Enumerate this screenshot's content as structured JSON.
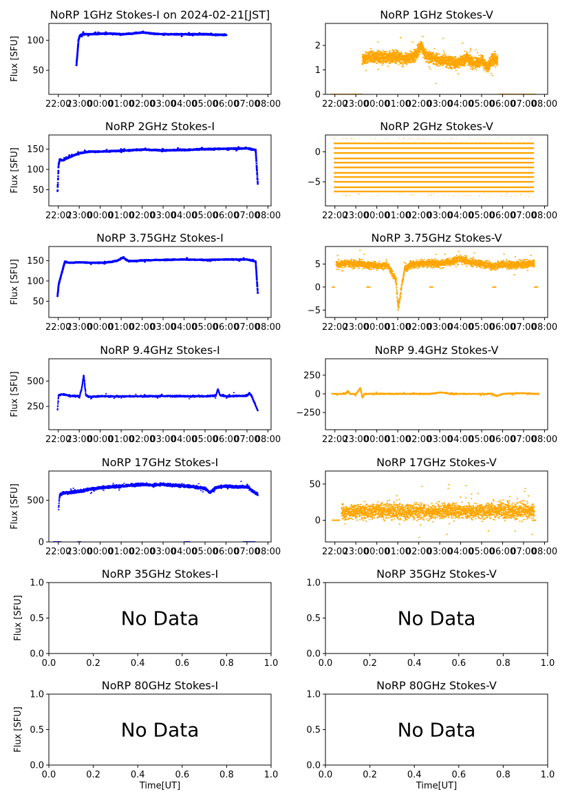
{
  "figure": {
    "colors": {
      "stokes_i": "#0000ff",
      "stokes_v": "#ffa500",
      "frame": "#000000"
    },
    "time_ticks": [
      "22:00",
      "23:00",
      "00:00",
      "01:00",
      "02:00",
      "03:00",
      "04:00",
      "05:00",
      "06:00",
      "07:00",
      "08:00"
    ],
    "frac_ticks": [
      "0.0",
      "0.2",
      "0.4",
      "0.6",
      "0.8",
      "1.0"
    ],
    "xlabel": "Time[UT]",
    "ylabel": "Flux [SFU]",
    "no_data_text": "No Data"
  },
  "chart_data": [
    {
      "panel": "1G-I",
      "title": "NoRP 1GHz Stokes-I on 2024-02-21[JST]",
      "type": "scatter",
      "color": "#0000ff",
      "ylabel": "Flux [SFU]",
      "xlabel": "",
      "xaxis": "time",
      "ylim": [
        10,
        128
      ],
      "yticks": [
        50,
        100
      ],
      "series": [
        {
          "x": [
            22.85,
            22.9,
            22.95,
            23.0,
            23.05,
            23.2,
            23.5,
            24.0,
            24.5,
            25.0,
            25.5,
            26.0,
            26.5,
            27.0,
            27.5,
            28.0,
            28.5,
            29.0,
            29.5,
            30.0
          ],
          "y": [
            58,
            78,
            100,
            106,
            109,
            110,
            110,
            111,
            111,
            110,
            111,
            113,
            111,
            110,
            110,
            110,
            110,
            110,
            109,
            109
          ]
        }
      ],
      "noise": 1.5
    },
    {
      "panel": "1G-V",
      "title": "NoRP 1GHz Stokes-V",
      "type": "scatter",
      "color": "#ffa500",
      "ylabel": "",
      "xlabel": "",
      "xaxis": "time",
      "ylim": [
        0,
        2.9
      ],
      "yticks": [
        0,
        1,
        2
      ],
      "series": [
        {
          "x": [
            23.3,
            23.7,
            24.3,
            24.8,
            25.3,
            25.7,
            25.95,
            26.1,
            26.3,
            26.8,
            27.3,
            27.7,
            28.3,
            28.7,
            29.0,
            29.3,
            29.5,
            29.75
          ],
          "y": [
            1.4,
            1.55,
            1.5,
            1.55,
            1.45,
            1.55,
            1.75,
            2.05,
            1.6,
            1.45,
            1.35,
            1.25,
            1.45,
            1.25,
            1.35,
            1.1,
            1.45,
            1.35
          ]
        }
      ],
      "noise": 0.35,
      "flat": [
        {
          "x0": 21.8,
          "x1": 23.3,
          "y": 0
        },
        {
          "x0": 29.8,
          "x1": 31.6,
          "y": 0
        }
      ]
    },
    {
      "panel": "2G-I",
      "title": "NoRP 2GHz Stokes-I",
      "type": "scatter",
      "color": "#0000ff",
      "ylabel": "Flux [SFU]",
      "xlabel": "",
      "xaxis": "time",
      "ylim": [
        10,
        185
      ],
      "yticks": [
        50,
        100,
        150
      ],
      "series": [
        {
          "x": [
            21.95,
            22.0,
            22.05,
            22.2,
            22.5,
            23.0,
            23.5,
            24.0,
            25.0,
            26.0,
            27.0,
            28.0,
            29.0,
            30.0,
            31.0,
            31.4,
            31.5
          ],
          "y": [
            45,
            110,
            125,
            122,
            130,
            140,
            144,
            144,
            146,
            149,
            147,
            148,
            150,
            151,
            152,
            148,
            65
          ]
        }
      ],
      "noise": 2.5
    },
    {
      "panel": "2G-V",
      "title": "NoRP 2GHz Stokes-V",
      "type": "bands",
      "color": "#ffa500",
      "ylabel": "",
      "xlabel": "",
      "xaxis": "time",
      "ylim": [
        -9,
        2.8
      ],
      "yticks": [
        -5,
        0
      ],
      "x_range": [
        21.95,
        31.5
      ],
      "levels": [
        1.4,
        0.6,
        -0.2,
        -1.1,
        -1.8,
        -2.6,
        -3.5,
        -4.2,
        -5.0,
        -5.9,
        -6.6
      ]
    },
    {
      "panel": "3.75G-I",
      "title": "NoRP 3.75GHz Stokes-I",
      "type": "scatter",
      "color": "#0000ff",
      "ylabel": "Flux [SFU]",
      "xlabel": "",
      "xaxis": "time",
      "ylim": [
        10,
        185
      ],
      "yticks": [
        50,
        100,
        150
      ],
      "series": [
        {
          "x": [
            21.95,
            22.0,
            22.1,
            22.3,
            22.5,
            23.0,
            23.5,
            24.0,
            24.5,
            24.8,
            25.0,
            25.1,
            25.3,
            25.6,
            26.0,
            27.0,
            28.0,
            29.0,
            30.0,
            31.0,
            31.4,
            31.5
          ],
          "y": [
            62,
            90,
            110,
            148,
            145,
            146,
            145,
            145,
            147,
            150,
            156,
            157,
            150,
            149,
            151,
            152,
            153,
            152,
            153,
            153,
            148,
            70
          ]
        }
      ],
      "noise": 2.0
    },
    {
      "panel": "3.75G-V",
      "title": "NoRP 3.75GHz Stokes-V",
      "type": "scatter",
      "color": "#ffa500",
      "ylabel": "",
      "xlabel": "",
      "xaxis": "time",
      "ylim": [
        -6.6,
        8.8
      ],
      "yticks": [
        -5,
        0,
        5
      ],
      "series": [
        {
          "x": [
            22.05,
            22.5,
            23.0,
            23.5,
            24.0,
            24.5,
            24.9,
            25.0,
            25.1,
            25.3,
            25.6,
            26.0,
            26.5,
            27.0,
            27.5,
            28.0,
            28.5,
            29.0,
            29.5,
            30.0,
            30.5,
            31.0,
            31.5
          ],
          "y": [
            5.0,
            5.2,
            5.0,
            4.8,
            4.6,
            4.8,
            1.5,
            -4.5,
            -2.0,
            3.8,
            4.8,
            5.0,
            5.2,
            5.0,
            5.5,
            6.0,
            5.4,
            5.0,
            4.5,
            5.0,
            4.8,
            5.0,
            5.2
          ]
        }
      ],
      "noise": 1.2,
      "flat": [
        {
          "x0": 21.85,
          "x1": 22.0,
          "y": 0
        },
        {
          "x0": 23.5,
          "x1": 23.7,
          "y": 0
        },
        {
          "x0": 26.5,
          "x1": 26.7,
          "y": 0
        },
        {
          "x0": 29.5,
          "x1": 29.7,
          "y": 0
        },
        {
          "x0": 31.5,
          "x1": 31.7,
          "y": 0
        }
      ]
    },
    {
      "panel": "9.4G-I",
      "title": "NoRP 9.4GHz Stokes-I",
      "type": "scatter",
      "color": "#0000ff",
      "ylabel": "Flux [SFU]",
      "xlabel": "",
      "xaxis": "time",
      "ylim": [
        20,
        720
      ],
      "yticks": [
        250,
        500
      ],
      "series": [
        {
          "x": [
            21.95,
            22.0,
            22.2,
            22.5,
            23.0,
            23.1,
            23.2,
            23.3,
            23.5,
            24.0,
            25.0,
            26.0,
            27.0,
            28.0,
            29.0,
            29.5,
            29.6,
            29.7,
            30.0,
            31.0,
            31.1,
            31.2,
            31.5
          ],
          "y": [
            210,
            360,
            370,
            355,
            350,
            420,
            560,
            360,
            345,
            350,
            348,
            350,
            352,
            350,
            350,
            355,
            420,
            360,
            350,
            355,
            380,
            355,
            210
          ]
        }
      ],
      "noise": 12
    },
    {
      "panel": "9.4G-V",
      "title": "NoRP 9.4GHz Stokes-V",
      "type": "scatter",
      "color": "#ffa500",
      "ylabel": "",
      "xlabel": "",
      "xaxis": "time",
      "ylim": [
        -480,
        470
      ],
      "yticks": [
        -250,
        0,
        250
      ],
      "series": [
        {
          "x": [
            21.85,
            22.5,
            22.6,
            22.7,
            23.0,
            23.2,
            23.3,
            23.4,
            23.6,
            24.5,
            25.5,
            26.5,
            27.0,
            27.5,
            28.5,
            29.5,
            29.7,
            30.0,
            31.0,
            31.5,
            31.7
          ],
          "y": [
            0,
            0,
            40,
            0,
            0,
            80,
            -50,
            0,
            0,
            0,
            0,
            0,
            20,
            0,
            0,
            0,
            -30,
            0,
            10,
            0,
            0
          ]
        }
      ],
      "noise": 10
    },
    {
      "panel": "17G-I",
      "title": "NoRP 17GHz Stokes-I",
      "type": "scatter",
      "color": "#0000ff",
      "ylabel": "Flux [SFU]",
      "xlabel": "",
      "xaxis": "time",
      "ylim": [
        0,
        850
      ],
      "yticks": [
        0,
        500
      ],
      "series": [
        {
          "x": [
            22.0,
            22.05,
            22.2,
            22.5,
            23.0,
            23.5,
            24.0,
            24.5,
            25.0,
            25.5,
            26.0,
            26.5,
            27.0,
            27.5,
            28.0,
            28.5,
            29.0,
            29.2,
            29.5,
            30.0,
            30.5,
            31.0,
            31.3,
            31.5
          ],
          "y": [
            400,
            560,
            590,
            590,
            610,
            630,
            650,
            660,
            670,
            680,
            690,
            680,
            690,
            680,
            670,
            660,
            640,
            590,
            650,
            670,
            660,
            660,
            600,
            570
          ]
        }
      ],
      "noise": 25,
      "flat": [
        {
          "x0": 21.75,
          "x1": 22.15,
          "y": 0
        },
        {
          "x0": 22.9,
          "x1": 23.1,
          "y": 0
        },
        {
          "x0": 28.0,
          "x1": 28.3,
          "y": 0
        },
        {
          "x0": 30.8,
          "x1": 31.4,
          "y": 0
        }
      ]
    },
    {
      "panel": "17G-V",
      "title": "NoRP 17GHz Stokes-V",
      "type": "scatter",
      "color": "#ffa500",
      "ylabel": "",
      "xlabel": "",
      "xaxis": "time",
      "ylim": [
        -30,
        68
      ],
      "yticks": [
        0,
        50
      ],
      "series": [
        {
          "x": [
            22.3,
            23.0,
            24.0,
            25.0,
            26.0,
            27.0,
            28.0,
            29.0,
            29.5,
            30.0,
            30.5,
            31.0,
            31.5
          ],
          "y": [
            12,
            12,
            13,
            13,
            12,
            13,
            13,
            12,
            13,
            14,
            12,
            14,
            13
          ]
        }
      ],
      "noise": 16,
      "flat": [
        {
          "x0": 21.85,
          "x1": 22.25,
          "y": 0
        },
        {
          "x0": 31.4,
          "x1": 31.6,
          "y": 0
        }
      ]
    },
    {
      "panel": "35G-I",
      "title": "NoRP 35GHz Stokes-I",
      "type": "empty",
      "ylabel": "Flux [SFU]",
      "xlabel": "",
      "xaxis": "fraction",
      "ylim": [
        0,
        1
      ],
      "yticks": [
        "0.0",
        "0.5",
        "1.0"
      ]
    },
    {
      "panel": "35G-V",
      "title": "NoRP 35GHz Stokes-V",
      "type": "empty",
      "ylabel": "",
      "xlabel": "",
      "xaxis": "fraction",
      "ylim": [
        0,
        1
      ],
      "yticks": [
        "0.0",
        "0.5",
        "1.0"
      ]
    },
    {
      "panel": "80G-I",
      "title": "NoRP 80GHz Stokes-I",
      "type": "empty",
      "ylabel": "Flux [SFU]",
      "xlabel": "Time[UT]",
      "xaxis": "fraction",
      "ylim": [
        0,
        1
      ],
      "yticks": [
        "0.0",
        "0.5",
        "1.0"
      ]
    },
    {
      "panel": "80G-V",
      "title": "NoRP 80GHz Stokes-V",
      "type": "empty",
      "ylabel": "",
      "xlabel": "Time[UT]",
      "xaxis": "fraction",
      "ylim": [
        0,
        1
      ],
      "yticks": [
        "0.0",
        "0.5",
        "1.0"
      ]
    }
  ]
}
